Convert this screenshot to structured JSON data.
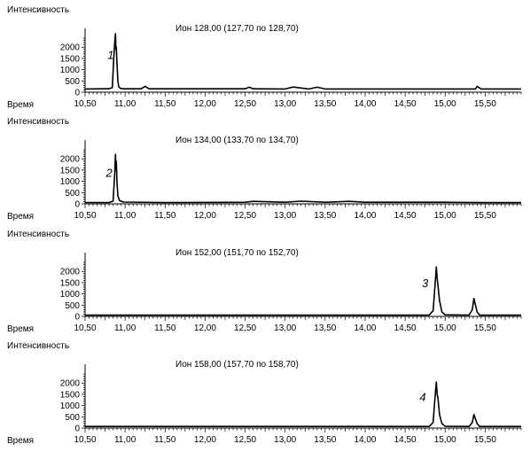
{
  "figure": {
    "y_axis_label": "Интенсивность",
    "x_axis_label": "Время"
  },
  "chart_data": [
    {
      "type": "line",
      "title": "Ион 128,00 (127,70 по 128,70)",
      "peak_label": "1",
      "peak_label_at": [
        10.82,
        1480
      ],
      "xlabel": "Время",
      "ylabel": "Интенсивность",
      "xlim": [
        10.5,
        15.95
      ],
      "ylim": [
        0,
        2600
      ],
      "x_ticks": [
        10.5,
        11.0,
        11.5,
        12.0,
        12.5,
        13.0,
        13.5,
        14.0,
        14.5,
        15.0,
        15.5
      ],
      "x_tick_labels": [
        "10,50",
        "11,00",
        "11,50",
        "12,00",
        "12,50",
        "13,00",
        "13,50",
        "14,00",
        "14,50",
        "15,00",
        "15,50"
      ],
      "y_ticks": [
        0,
        500,
        1000,
        1500,
        2000
      ],
      "y_tick_labels": [
        "0",
        "500",
        "1000",
        "1500",
        "2000"
      ],
      "series": [
        {
          "x": [
            10.5,
            10.7,
            10.8,
            10.84,
            10.86,
            10.87,
            10.88,
            10.885,
            10.89,
            10.9,
            10.91,
            10.92,
            10.94,
            10.98,
            11.2,
            11.25,
            11.3,
            12.5,
            12.55,
            12.6,
            13.0,
            13.1,
            13.3,
            13.4,
            13.5,
            14.0,
            14.5,
            15.0,
            15.38,
            15.4,
            15.45,
            15.95
          ],
          "y": [
            140,
            150,
            155,
            200,
            1600,
            2200,
            2600,
            1900,
            2000,
            1200,
            500,
            250,
            170,
            150,
            150,
            260,
            150,
            150,
            220,
            150,
            140,
            230,
            140,
            220,
            140,
            140,
            140,
            140,
            140,
            260,
            140,
            140
          ]
        }
      ]
    },
    {
      "type": "line",
      "title": "Ион 134,00 (133,70 по 134,70)",
      "peak_label": "2",
      "peak_label_at": [
        10.8,
        1200
      ],
      "xlabel": "Время",
      "ylabel": "Интенсивность",
      "xlim": [
        10.5,
        15.95
      ],
      "ylim": [
        0,
        2600
      ],
      "x_ticks": [
        10.5,
        11.0,
        11.5,
        12.0,
        12.5,
        13.0,
        13.5,
        14.0,
        14.5,
        15.0,
        15.5
      ],
      "x_tick_labels": [
        "10,50",
        "11,00",
        "11,50",
        "12,00",
        "12,50",
        "13,00",
        "13,50",
        "14,00",
        "14,50",
        "15,00",
        "15,50"
      ],
      "y_ticks": [
        0,
        500,
        1000,
        1500,
        2000
      ],
      "y_tick_labels": [
        "0",
        "500",
        "1000",
        "1500",
        "2000"
      ],
      "series": [
        {
          "x": [
            10.5,
            10.8,
            10.85,
            10.87,
            10.88,
            10.885,
            10.89,
            10.9,
            10.91,
            10.93,
            10.98,
            11.5,
            12.5,
            12.6,
            13.0,
            13.2,
            13.5,
            13.8,
            14.0,
            14.5,
            15.0,
            15.5,
            15.95
          ],
          "y": [
            60,
            60,
            120,
            1300,
            2200,
            1500,
            1900,
            900,
            350,
            150,
            80,
            60,
            70,
            110,
            70,
            120,
            70,
            110,
            70,
            70,
            70,
            60,
            60
          ]
        }
      ]
    },
    {
      "type": "line",
      "title": "Ион 152,00 (151,70 по 152,70)",
      "peak_label": "3",
      "peak_label_at": [
        14.75,
        1300
      ],
      "xlabel": "Время",
      "ylabel": "Интенсивность",
      "xlim": [
        10.5,
        15.95
      ],
      "ylim": [
        0,
        2600
      ],
      "x_ticks": [
        10.5,
        11.0,
        11.5,
        12.0,
        12.5,
        13.0,
        13.5,
        14.0,
        14.5,
        15.0,
        15.5
      ],
      "x_tick_labels": [
        "10,50",
        "11,00",
        "11,50",
        "12,00",
        "12,50",
        "13,00",
        "13,50",
        "14,00",
        "14,50",
        "15,00",
        "15,50"
      ],
      "y_ticks": [
        0,
        500,
        1000,
        1500,
        2000
      ],
      "y_tick_labels": [
        "0",
        "500",
        "1000",
        "1500",
        "2000"
      ],
      "series": [
        {
          "x": [
            10.5,
            14.8,
            14.85,
            14.87,
            14.89,
            14.9,
            14.91,
            14.93,
            14.96,
            15.0,
            15.3,
            15.34,
            15.36,
            15.38,
            15.4,
            15.43,
            15.95
          ],
          "y": [
            60,
            60,
            250,
            1200,
            2200,
            1700,
            1400,
            700,
            200,
            70,
            60,
            300,
            800,
            500,
            200,
            60,
            60
          ]
        }
      ]
    },
    {
      "type": "line",
      "title": "Ион 158,00 (157,70 по 158,70)",
      "peak_label": "4",
      "peak_label_at": [
        14.72,
        1200
      ],
      "xlabel": "Время",
      "ylabel": "Интенсивность",
      "xlim": [
        10.5,
        15.95
      ],
      "ylim": [
        0,
        2600
      ],
      "x_ticks": [
        10.5,
        11.0,
        11.5,
        12.0,
        12.5,
        13.0,
        13.5,
        14.0,
        14.5,
        15.0,
        15.5
      ],
      "x_tick_labels": [
        "10,50",
        "11,00",
        "11,50",
        "12,00",
        "12,50",
        "13,00",
        "13,50",
        "14,00",
        "14,50",
        "15,00",
        "15,50"
      ],
      "y_ticks": [
        0,
        500,
        1000,
        1500,
        2000
      ],
      "y_tick_labels": [
        "0",
        "500",
        "1000",
        "1500",
        "2000"
      ],
      "series": [
        {
          "x": [
            10.5,
            14.8,
            14.85,
            14.87,
            14.89,
            14.9,
            14.91,
            14.93,
            14.96,
            15.0,
            15.3,
            15.34,
            15.36,
            15.38,
            15.4,
            15.43,
            15.95
          ],
          "y": [
            70,
            70,
            250,
            1200,
            2050,
            1500,
            1350,
            600,
            200,
            80,
            70,
            250,
            600,
            400,
            200,
            70,
            70
          ]
        }
      ]
    }
  ]
}
